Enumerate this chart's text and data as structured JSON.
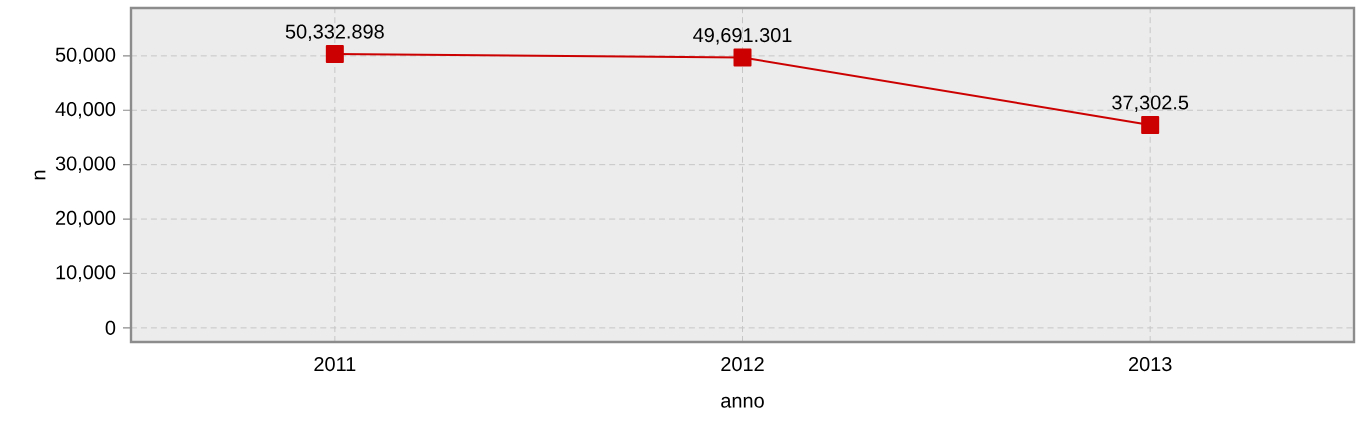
{
  "chart_data": {
    "type": "line",
    "xlabel": "anno",
    "ylabel": "n",
    "categories": [
      "2011",
      "2012",
      "2013"
    ],
    "series": [
      {
        "color": "#cc0000",
        "values": [
          50332.898,
          49691.301,
          37302.5
        ],
        "value_labels": [
          "50,332.898",
          "49,691.301",
          "37,302.5"
        ]
      }
    ],
    "ylim": [
      -2600,
      58800
    ],
    "yticks": [
      0,
      {
        "value": 10000,
        "label": "10,000"
      },
      {
        "value": 20000,
        "label": "20,000"
      },
      {
        "value": 30000,
        "label": "30,000"
      },
      {
        "value": 40000,
        "label": "40,000"
      },
      {
        "value": 50000,
        "label": "50,000"
      }
    ],
    "grid": true,
    "marker": "square"
  }
}
